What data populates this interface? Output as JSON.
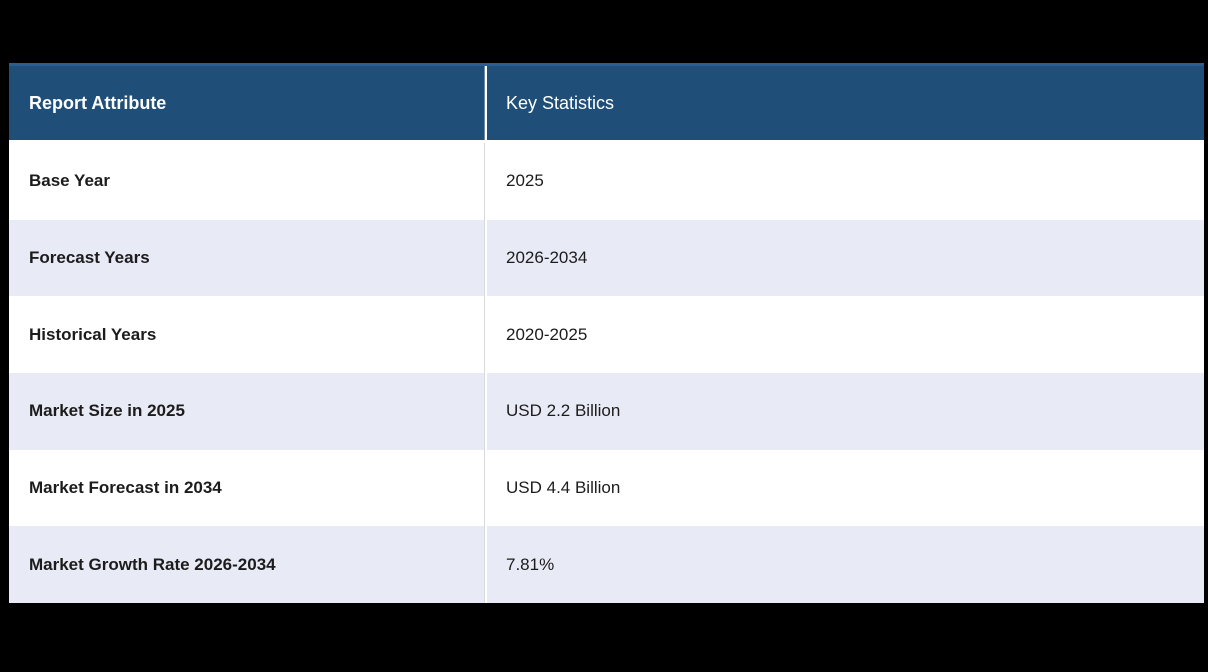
{
  "chart_data": {
    "type": "table",
    "title": "",
    "columns": [
      "Report Attribute",
      "Key Statistics"
    ],
    "rows": [
      [
        "Base Year",
        "2025"
      ],
      [
        "Forecast Years",
        "2026-2034"
      ],
      [
        "Historical Years",
        "2020-2025"
      ],
      [
        "Market Size in 2025",
        "USD 2.2 Billion"
      ],
      [
        "Market Forecast in 2034",
        "USD 4.4 Billion"
      ],
      [
        "Market Growth Rate 2026-2034",
        "7.81%"
      ]
    ],
    "layout_hints": {
      "header_position": "top",
      "alternating_row_shading": true,
      "grid": "column-divider-only"
    }
  },
  "colors": {
    "background": "#000000",
    "header_bg": "#1F4E78",
    "header_top_edge": "#2A5E93",
    "header_text": "#FFFFFF",
    "row_bg": "#FFFFFF",
    "row_alt_bg": "#E8EAF5",
    "divider": "#FFFFFF",
    "divider_seam": "#D9DADF",
    "text": "#1C1C1C"
  }
}
